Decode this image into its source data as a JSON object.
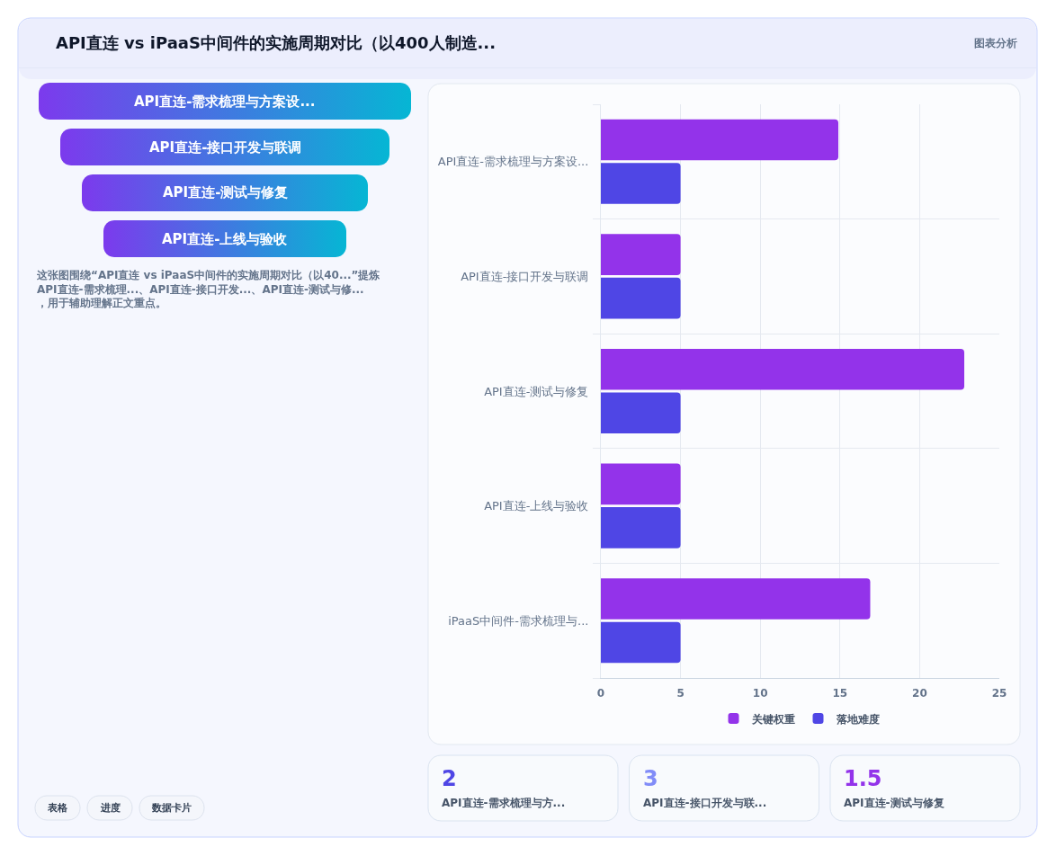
{
  "chart_data": [
    {
      "type": "other",
      "title": "API直连 vs iPaaS中间件的实施周期对比（以400人制造...",
      "categories": [
        "API直连-需求梳理与方案设...",
        "API直连-接口开发与联调",
        "API直连-测试与修复",
        "API直连-上线与验收"
      ],
      "colors": [
        "#7c3aed",
        "#06b6d4"
      ],
      "annotations": [
        "图表分析",
        "这张图围绕“API直连 vs iPaaS中间件的实施周期对比（以40...”提炼API直连-需求梳理...、API直连-接口开发...、API直连-测试与修...，用于辅助理解正文重点。",
        "表格",
        "进度",
        "数据卡片"
      ]
    },
    {
      "type": "bar",
      "orientation": "horizontal",
      "categories": [
        "API直连-需求梳理与方案设...",
        "API直连-接口开发与联调",
        "API直连-测试与修复",
        "API直连-上线与验收",
        "iPaaS中间件-需求梳理与..."
      ],
      "series": [
        {
          "name": "关键权重",
          "color": "#9333ea",
          "values": [
            14.9,
            5,
            22.8,
            5,
            16.9
          ]
        },
        {
          "name": "落地难度",
          "color": "#4f46e5",
          "values": [
            5,
            5,
            5,
            5,
            5
          ]
        }
      ],
      "xlim": [
        0,
        25
      ],
      "xticks": [
        0,
        5,
        10,
        15,
        20,
        25
      ],
      "grid": true,
      "legend": "bottom"
    },
    {
      "type": "other",
      "annotations": [
        "2",
        "API直连-需求梳理与方...",
        "3",
        "API直连-接口开发与联...",
        "1.5",
        "API直连-测试与修复"
      ]
    }
  ]
}
